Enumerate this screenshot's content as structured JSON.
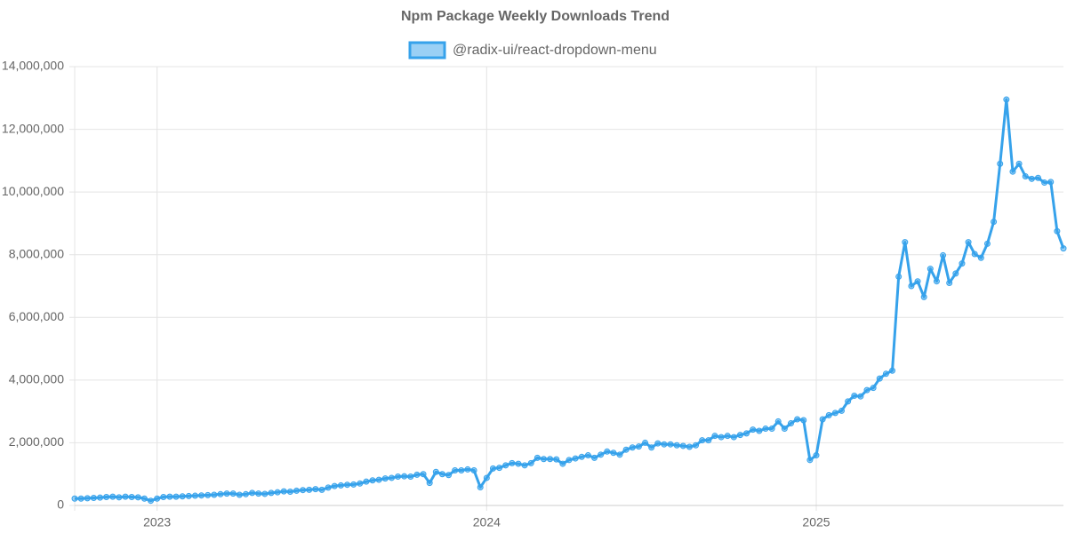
{
  "chart_data": {
    "type": "line",
    "title": "Npm Package Weekly Downloads Trend",
    "categories": [
      null,
      null,
      null,
      null,
      null,
      null,
      null,
      null,
      null,
      null,
      null,
      null,
      null,
      "2023",
      null,
      null,
      null,
      null,
      null,
      null,
      null,
      null,
      null,
      null,
      null,
      null,
      null,
      null,
      null,
      null,
      null,
      null,
      null,
      null,
      null,
      null,
      null,
      null,
      null,
      null,
      null,
      null,
      null,
      null,
      null,
      null,
      null,
      null,
      null,
      null,
      null,
      null,
      null,
      null,
      null,
      null,
      null,
      null,
      null,
      null,
      null,
      null,
      null,
      null,
      null,
      "2024",
      null,
      null,
      null,
      null,
      null,
      null,
      null,
      null,
      null,
      null,
      null,
      null,
      null,
      null,
      null,
      null,
      null,
      null,
      null,
      null,
      null,
      null,
      null,
      null,
      null,
      null,
      null,
      null,
      null,
      null,
      null,
      null,
      null,
      null,
      null,
      null,
      null,
      null,
      null,
      null,
      null,
      null,
      null,
      null,
      null,
      null,
      null,
      null,
      null,
      null,
      null,
      "2025",
      null,
      null,
      null,
      null,
      null,
      null,
      null,
      null,
      null,
      null,
      null,
      null,
      null,
      null,
      null,
      null,
      null,
      null,
      null,
      null,
      null,
      null,
      null,
      null,
      null,
      null,
      null,
      null,
      null,
      null,
      null,
      null,
      null,
      null,
      null,
      null,
      null,
      null,
      null
    ],
    "series": [
      {
        "name": "@radix-ui/react-dropdown-menu",
        "color": "#36a2eb",
        "values": [
          220000,
          220000,
          230000,
          240000,
          250000,
          270000,
          280000,
          260000,
          280000,
          270000,
          260000,
          220000,
          150000,
          220000,
          270000,
          280000,
          280000,
          290000,
          300000,
          310000,
          320000,
          330000,
          340000,
          360000,
          380000,
          380000,
          340000,
          360000,
          400000,
          380000,
          370000,
          400000,
          420000,
          450000,
          440000,
          470000,
          490000,
          500000,
          520000,
          500000,
          570000,
          620000,
          640000,
          660000,
          670000,
          700000,
          760000,
          800000,
          820000,
          860000,
          880000,
          920000,
          930000,
          920000,
          980000,
          1000000,
          720000,
          1070000,
          1000000,
          970000,
          1120000,
          1120000,
          1150000,
          1120000,
          580000,
          880000,
          1180000,
          1200000,
          1280000,
          1350000,
          1330000,
          1280000,
          1350000,
          1520000,
          1480000,
          1480000,
          1470000,
          1330000,
          1450000,
          1500000,
          1550000,
          1600000,
          1520000,
          1620000,
          1720000,
          1680000,
          1620000,
          1780000,
          1850000,
          1880000,
          2000000,
          1850000,
          1980000,
          1950000,
          1950000,
          1920000,
          1900000,
          1870000,
          1920000,
          2080000,
          2080000,
          2220000,
          2180000,
          2220000,
          2180000,
          2250000,
          2300000,
          2420000,
          2380000,
          2450000,
          2450000,
          2680000,
          2450000,
          2620000,
          2750000,
          2720000,
          1450000,
          1600000,
          2750000,
          2880000,
          2950000,
          3020000,
          3320000,
          3500000,
          3480000,
          3680000,
          3750000,
          4050000,
          4200000,
          4300000,
          7300000,
          8400000,
          7000000,
          7150000,
          6650000,
          7550000,
          7150000,
          7980000,
          7100000,
          7400000,
          7720000,
          8400000,
          8020000,
          7900000,
          8350000,
          9050000,
          10900000,
          12950000,
          10650000,
          10900000,
          10500000,
          10420000,
          10450000,
          10300000,
          10320000,
          8750000,
          8200000
        ]
      }
    ],
    "ylim": [
      0,
      14000000
    ],
    "yticks": [
      0,
      {
        "value": 2000000,
        "label": "2,000,000"
      },
      {
        "value": 4000000,
        "label": "4,000,000"
      },
      {
        "value": 6000000,
        "label": "6,000,000"
      },
      {
        "value": 8000000,
        "label": "8,000,000"
      },
      {
        "value": 10000000,
        "label": "10,000,000"
      },
      {
        "value": 12000000,
        "label": "12,000,000"
      },
      {
        "value": 14000000,
        "label": "14,000,000"
      }
    ],
    "grid": true,
    "legend": "top"
  }
}
